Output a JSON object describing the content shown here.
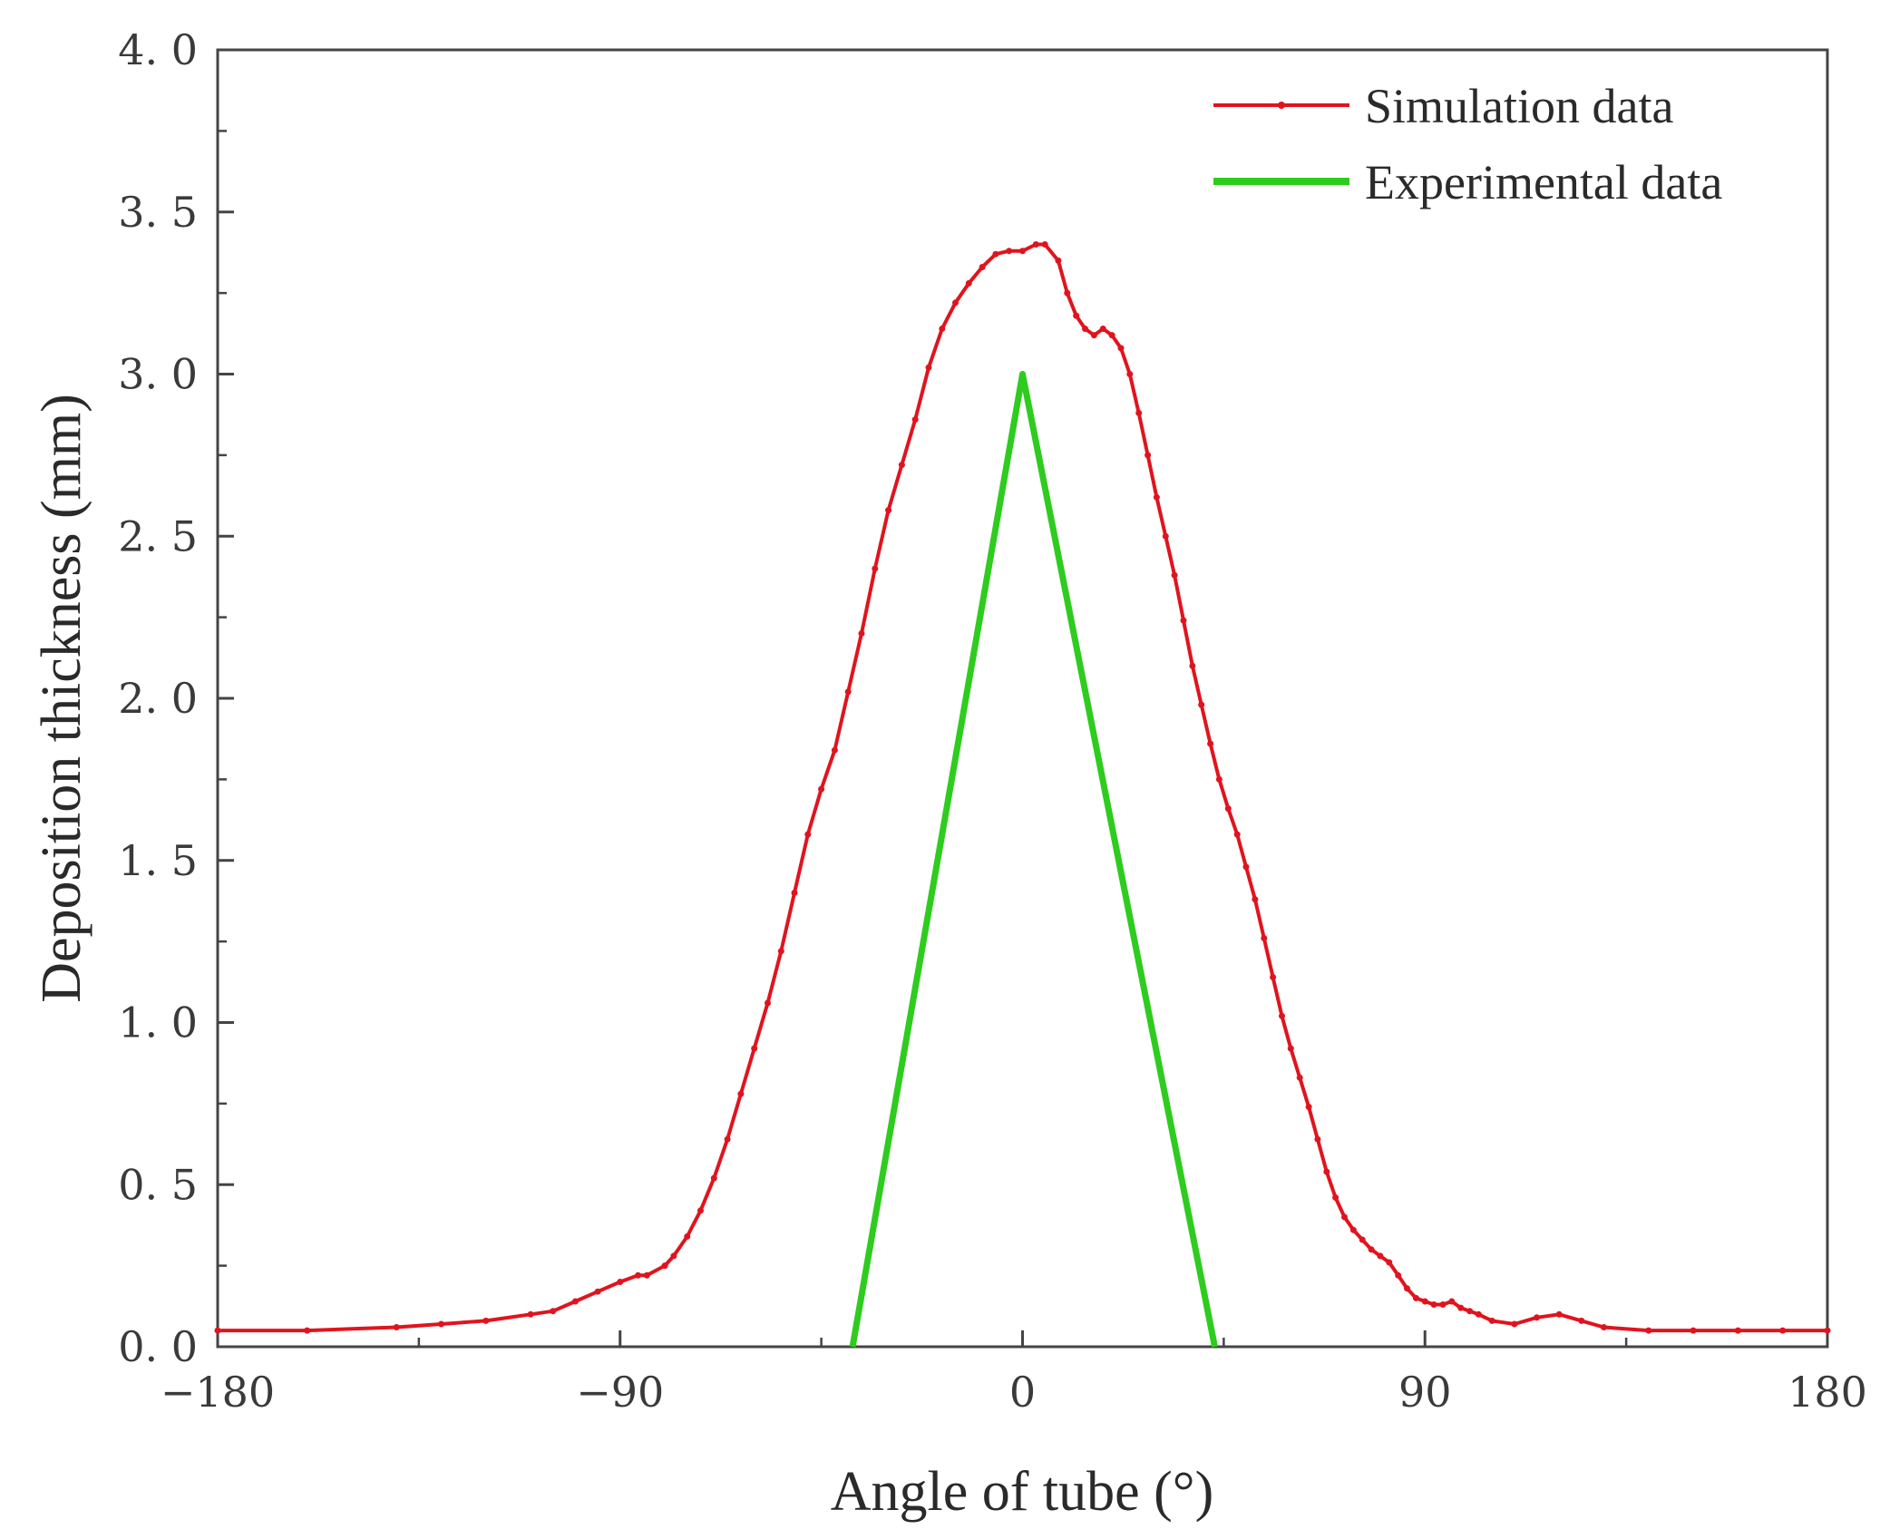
{
  "chart_data": {
    "type": "line",
    "title": "",
    "xlabel": "Angle of tube (°)",
    "ylabel": "Deposition thickness (mm)",
    "xlim": [
      -180,
      180
    ],
    "ylim": [
      0,
      4
    ],
    "x_ticks": [
      -180,
      -90,
      0,
      90,
      180
    ],
    "x_tick_labels": [
      "−180",
      "−90",
      "0",
      "90",
      "180"
    ],
    "y_ticks": [
      0,
      0.5,
      1,
      1.5,
      2,
      2.5,
      3,
      3.5,
      4
    ],
    "y_tick_labels": [
      "0. 0",
      "0. 5",
      "1. 0",
      "1. 5",
      "2. 0",
      "2. 5",
      "3. 0",
      "3. 5",
      "4. 0"
    ],
    "grid": false,
    "legend_position": "top-right",
    "series": [
      {
        "name": "Simulation data",
        "color": "#e0141e",
        "marker": "dot",
        "x": [
          -180,
          -160,
          -140,
          -130,
          -120,
          -110,
          -105,
          -100,
          -95,
          -90,
          -86,
          -84,
          -80,
          -78,
          -75,
          -72,
          -69,
          -66,
          -63,
          -60,
          -57,
          -54,
          -51,
          -48,
          -45,
          -42,
          -39,
          -36,
          -33,
          -30,
          -27,
          -24,
          -21,
          -18,
          -15,
          -12,
          -9,
          -6,
          -3,
          0,
          3,
          5,
          8,
          10,
          12,
          14,
          16,
          18,
          20,
          22,
          24,
          26,
          28,
          30,
          32,
          34,
          36,
          38,
          40,
          42,
          44,
          46,
          48,
          50,
          52,
          54,
          56,
          58,
          60,
          62,
          64,
          66,
          68,
          70,
          72,
          74,
          76,
          78,
          80,
          82,
          84,
          86,
          88,
          90,
          92,
          94,
          96,
          98,
          100,
          102,
          105,
          110,
          115,
          120,
          125,
          130,
          140,
          150,
          160,
          170,
          180
        ],
        "y": [
          0.05,
          0.05,
          0.06,
          0.07,
          0.08,
          0.1,
          0.11,
          0.14,
          0.17,
          0.2,
          0.22,
          0.22,
          0.25,
          0.28,
          0.34,
          0.42,
          0.52,
          0.64,
          0.78,
          0.92,
          1.06,
          1.22,
          1.4,
          1.58,
          1.72,
          1.84,
          2.02,
          2.2,
          2.4,
          2.58,
          2.72,
          2.86,
          3.02,
          3.14,
          3.22,
          3.28,
          3.33,
          3.37,
          3.38,
          3.38,
          3.4,
          3.4,
          3.35,
          3.25,
          3.18,
          3.14,
          3.12,
          3.14,
          3.12,
          3.08,
          3.0,
          2.88,
          2.75,
          2.62,
          2.5,
          2.38,
          2.24,
          2.1,
          1.98,
          1.86,
          1.75,
          1.66,
          1.58,
          1.48,
          1.38,
          1.26,
          1.14,
          1.02,
          0.92,
          0.83,
          0.74,
          0.64,
          0.54,
          0.46,
          0.4,
          0.36,
          0.33,
          0.3,
          0.28,
          0.26,
          0.22,
          0.18,
          0.15,
          0.14,
          0.13,
          0.13,
          0.14,
          0.12,
          0.11,
          0.1,
          0.08,
          0.07,
          0.09,
          0.1,
          0.08,
          0.06,
          0.05,
          0.05,
          0.05,
          0.05,
          0.05
        ]
      },
      {
        "name": "Experimental data",
        "color": "#2ecc1e",
        "marker": "none",
        "x": [
          -38,
          0,
          43
        ],
        "y": [
          0,
          3.0,
          0
        ]
      }
    ]
  }
}
